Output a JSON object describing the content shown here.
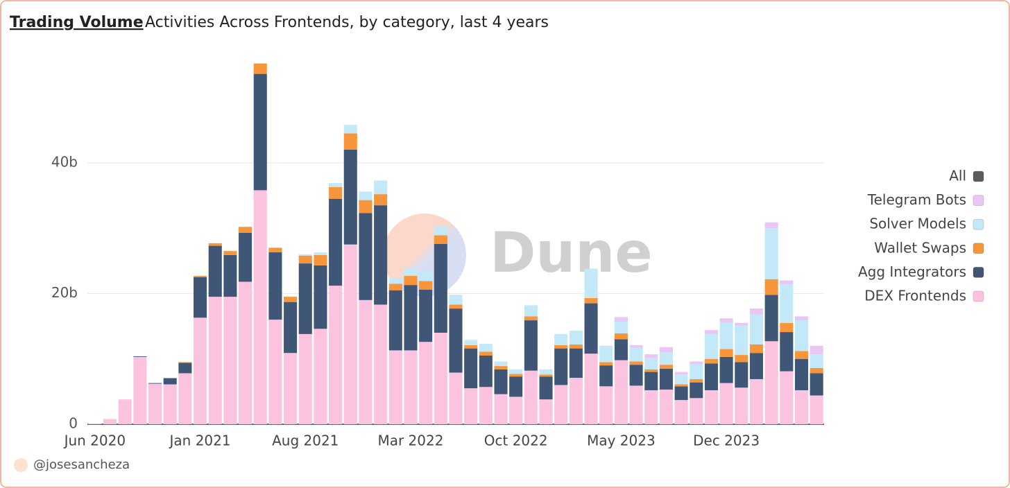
{
  "chart_data": {
    "type": "stacked_bar",
    "title": "Trading Volume",
    "subtitle": "Activities Across Frontends, by category, last 4 years",
    "watermark": "Dune",
    "credit": "@josesancheza",
    "categories": [
      "Jun 2020",
      null,
      null,
      null,
      null,
      null,
      null,
      "Jan 2021",
      null,
      null,
      null,
      null,
      null,
      null,
      "Aug 2021",
      null,
      null,
      null,
      null,
      null,
      null,
      "Mar 2022",
      null,
      null,
      null,
      null,
      null,
      null,
      "Oct 2022",
      null,
      null,
      null,
      null,
      null,
      null,
      "May 2023",
      null,
      null,
      null,
      null,
      null,
      null,
      "Dec 2023",
      null,
      null,
      null,
      null,
      null,
      null
    ],
    "ylim": [
      0,
      56
    ],
    "yticks": [
      0,
      {
        "value": 20,
        "label": "20b"
      },
      {
        "value": 40,
        "label": "40b"
      }
    ],
    "grid": true,
    "legend": "right",
    "series": [
      {
        "name": "DEX Frontends",
        "color": "#fcc3e0",
        "values": [
          0.1,
          0.8,
          3.8,
          10.3,
          6.2,
          6.1,
          7.8,
          16.3,
          19.5,
          19.5,
          21.8,
          35.8,
          16,
          10.9,
          13.8,
          14.6,
          21.2,
          27.5,
          19,
          18.3,
          11.3,
          11.3,
          12.6,
          14,
          7.9,
          5.5,
          5.7,
          4.6,
          4.2,
          8.2,
          3.8,
          6,
          7.1,
          10.8,
          5.8,
          9.8,
          5.9,
          5.2,
          5.3,
          3.7,
          4,
          5.2,
          6.3,
          5.6,
          6.9,
          12.7,
          8.1,
          5.2,
          4.4
        ]
      },
      {
        "name": "Agg Integrators",
        "color": "#3f5677",
        "values": [
          0,
          0,
          0,
          0.1,
          0.1,
          0.9,
          1.6,
          6.2,
          7.8,
          6.4,
          7.5,
          17.8,
          10.3,
          7.8,
          10.8,
          9.7,
          13.3,
          14.5,
          13.3,
          15.2,
          9.2,
          10,
          8,
          13.6,
          9.8,
          6.1,
          4.8,
          3.8,
          3.1,
          7.7,
          3.5,
          5.6,
          4.5,
          7.7,
          3.2,
          3.2,
          3.2,
          2.8,
          3.2,
          2.1,
          2.4,
          4.1,
          4,
          3.9,
          4,
          7.1,
          6,
          4.8,
          3.4
        ]
      },
      {
        "name": "Wallet Swaps",
        "color": "#f7953a",
        "values": [
          0,
          0,
          0,
          0,
          0,
          0.1,
          0.1,
          0.2,
          0.4,
          0.6,
          0.9,
          1.6,
          0.7,
          0.8,
          1.2,
          1.6,
          1.8,
          2.5,
          2,
          1.7,
          1,
          1.4,
          1.3,
          1.3,
          0.6,
          0.5,
          0.6,
          0.5,
          0.4,
          0.6,
          0.3,
          0.5,
          0.6,
          0.8,
          0.5,
          0.9,
          0.5,
          0.4,
          0.6,
          0.3,
          0.5,
          0.7,
          1.2,
          1.1,
          1.3,
          2.4,
          1.4,
          1.2,
          0.8
        ]
      },
      {
        "name": "Solver Models",
        "color": "#c3e9f8",
        "values": [
          0,
          0,
          0,
          0,
          0,
          0,
          0,
          0,
          0,
          0,
          0,
          0,
          0,
          0,
          0.2,
          0.4,
          0.6,
          1.3,
          1.3,
          2.1,
          0.8,
          1.2,
          1.5,
          1.4,
          1.5,
          0.8,
          1.2,
          0.7,
          0.7,
          1.7,
          0.8,
          1.7,
          2.1,
          4.5,
          2.4,
          1.8,
          2.1,
          1.7,
          1.9,
          1.5,
          2.3,
          3.8,
          4.1,
          4.5,
          4.6,
          7.8,
          5.9,
          4.7,
          2.1
        ]
      },
      {
        "name": "Telegram Bots",
        "color": "#e9c6f6",
        "values": [
          0,
          0,
          0,
          0,
          0,
          0,
          0,
          0,
          0,
          0,
          0,
          0,
          0,
          0,
          0,
          0,
          0,
          0,
          0,
          0,
          0,
          0,
          0,
          0,
          0,
          0,
          0,
          0,
          0,
          0,
          0,
          0,
          0,
          0,
          0.1,
          0.7,
          0.4,
          0.6,
          0.8,
          0.4,
          0.4,
          0.6,
          0.6,
          0.4,
          0.9,
          0.9,
          0.6,
          0.6,
          1.3
        ]
      },
      {
        "name": "All",
        "color": "#5c5c5c",
        "values": [
          null,
          null,
          null,
          null,
          null,
          null,
          null,
          null,
          null,
          null,
          null,
          null,
          null,
          null,
          null,
          null,
          null,
          null,
          null,
          null,
          null,
          null,
          null,
          null,
          null,
          null,
          null,
          null,
          null,
          null,
          null,
          null,
          null,
          null,
          null,
          null,
          null,
          null,
          null,
          null,
          null,
          null,
          null,
          null,
          null,
          null,
          null,
          null,
          null
        ]
      }
    ]
  }
}
